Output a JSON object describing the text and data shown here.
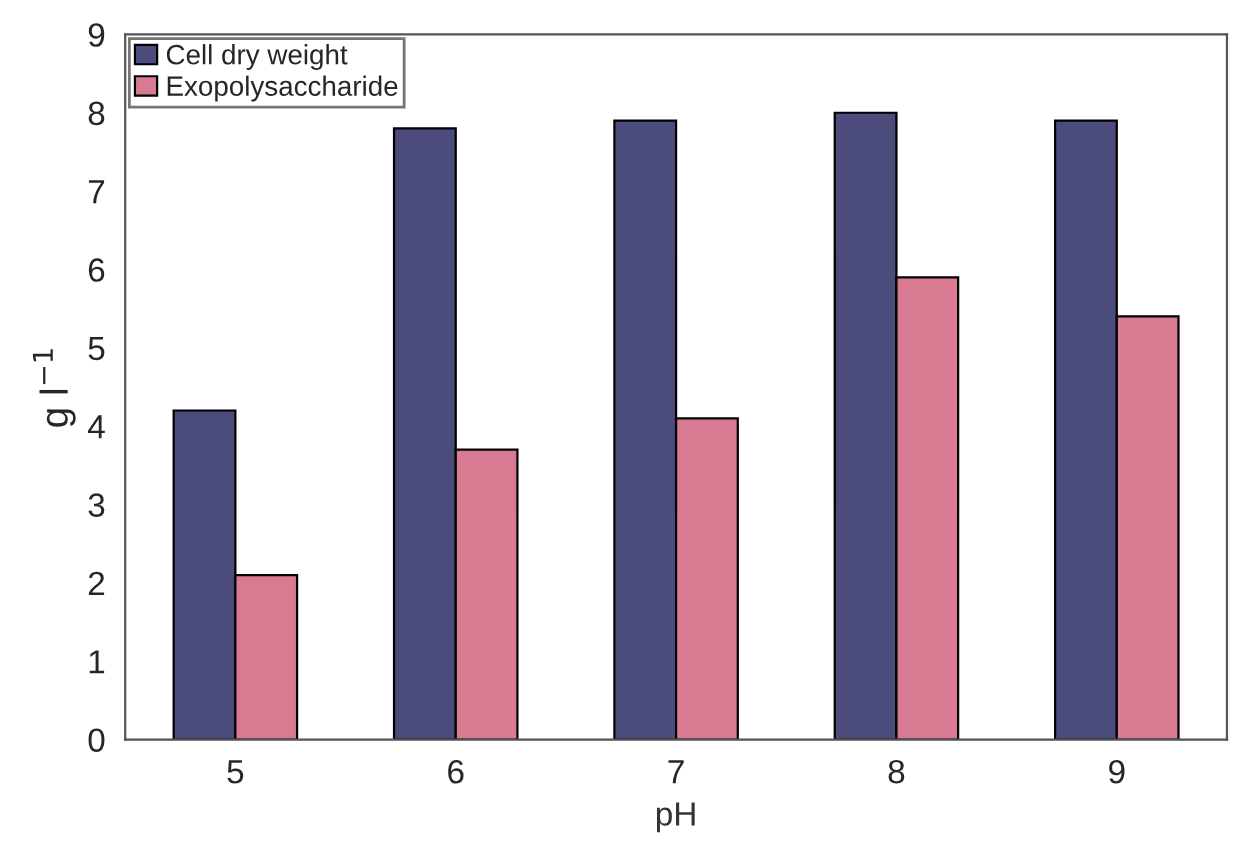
{
  "chart_data": {
    "type": "bar",
    "xlabel": "pH",
    "ylabel": "g l$^{−1}$",
    "categories": [
      "5",
      "6",
      "7",
      "8",
      "9"
    ],
    "series": [
      {
        "name": "Cell dry weight",
        "color": "#4b4b7c",
        "values": [
          4.2,
          7.8,
          7.9,
          8.0,
          7.9
        ]
      },
      {
        "name": "Exopolysaccharide",
        "color": "#d97a93",
        "values": [
          2.1,
          3.7,
          4.1,
          5.9,
          5.4
        ]
      }
    ],
    "ylim": [
      0,
      9
    ],
    "yticks": [
      0,
      1,
      2,
      3,
      4,
      5,
      6,
      7,
      8,
      9
    ],
    "grid": false,
    "legend": "top left"
  }
}
